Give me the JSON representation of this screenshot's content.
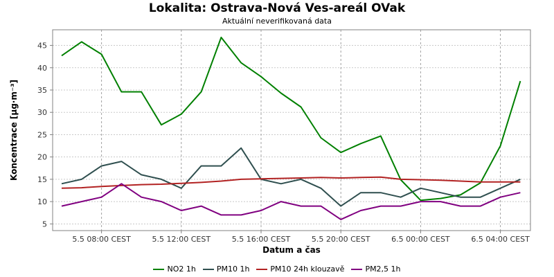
{
  "chart_data": {
    "type": "line",
    "title": "Lokalita: Ostrava-Nová Ves-areál OVak",
    "subtitle": "Aktuální neverifikovaná data",
    "xlabel": "Datum a čas",
    "ylabel": "Koncentrace [µg·m⁻³]",
    "ylim": [
      3.5,
      48.5
    ],
    "yticks": [
      5,
      10,
      15,
      20,
      25,
      30,
      35,
      40,
      45
    ],
    "x": [
      "5.5 06:00",
      "5.5 07:00",
      "5.5 08:00",
      "5.5 09:00",
      "5.5 10:00",
      "5.5 11:00",
      "5.5 12:00",
      "5.5 13:00",
      "5.5 14:00",
      "5.5 15:00",
      "5.5 16:00",
      "5.5 17:00",
      "5.5 18:00",
      "5.5 19:00",
      "5.5 20:00",
      "5.5 21:00",
      "5.5 22:00",
      "5.5 23:00",
      "6.5 00:00",
      "6.5 01:00",
      "6.5 02:00",
      "6.5 03:00",
      "6.5 04:00",
      "6.5 05:00"
    ],
    "xtick_labels": [
      {
        "at": "5.5 08:00",
        "label": "5.5 08:00 CEST"
      },
      {
        "at": "5.5 12:00",
        "label": "5.5 12:00 CEST"
      },
      {
        "at": "5.5 16:00",
        "label": "5.5 16:00 CEST"
      },
      {
        "at": "5.5 20:00",
        "label": "5.5 20:00 CEST"
      },
      {
        "at": "6.5 00:00",
        "label": "6.5 00:00 CEST"
      },
      {
        "at": "6.5 04:00",
        "label": "6.5 04:00 CEST"
      }
    ],
    "grid": true,
    "legend_position": "bottom",
    "series": [
      {
        "name": "NO2 1h",
        "color": "#008000",
        "values": [
          42.7,
          45.8,
          43.0,
          34.6,
          34.6,
          27.2,
          29.6,
          34.6,
          46.8,
          41.1,
          38.0,
          34.3,
          31.2,
          24.3,
          21.0,
          23.0,
          24.7,
          14.9,
          10.3,
          10.7,
          11.5,
          14.2,
          22.5,
          37.0
        ]
      },
      {
        "name": "PM10 1h",
        "color": "#2f4f4f",
        "values": [
          14,
          15,
          18,
          19,
          16,
          15,
          13,
          18,
          18,
          22,
          15,
          14,
          15,
          13,
          9,
          12,
          12,
          11,
          13,
          12,
          11,
          11,
          13,
          15
        ]
      },
      {
        "name": "PM10 24h klouzavě",
        "color": "#b22222",
        "values": [
          13.0,
          13.1,
          13.4,
          13.6,
          13.8,
          13.9,
          14.1,
          14.3,
          14.6,
          15.0,
          15.1,
          15.2,
          15.3,
          15.4,
          15.3,
          15.4,
          15.5,
          15.0,
          14.9,
          14.8,
          14.6,
          14.4,
          14.4,
          14.4
        ]
      },
      {
        "name": "PM2,5 1h",
        "color": "#800080",
        "values": [
          9,
          10,
          11,
          14,
          11,
          10,
          8,
          9,
          7,
          7,
          8,
          10,
          9,
          9,
          6,
          8,
          9,
          9,
          10,
          10,
          9,
          9,
          11,
          12
        ]
      }
    ]
  }
}
